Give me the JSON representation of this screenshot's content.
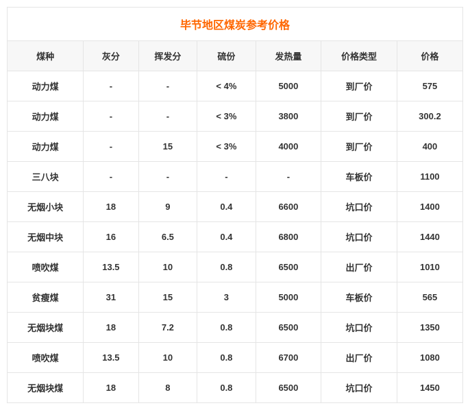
{
  "title": "毕节地区煤炭参考价格",
  "title_color": "#ff6600",
  "columns": [
    "煤种",
    "灰分",
    "挥发分",
    "硫份",
    "发热量",
    "价格类型",
    "价格"
  ],
  "rows": [
    [
      "动力煤",
      "-",
      "-",
      "< 4%",
      "5000",
      "到厂价",
      "575"
    ],
    [
      "动力煤",
      "-",
      "-",
      "< 3%",
      "3800",
      "到厂价",
      "300.2"
    ],
    [
      "动力煤",
      "-",
      "15",
      "< 3%",
      "4000",
      "到厂价",
      "400"
    ],
    [
      "三八块",
      "-",
      "-",
      "-",
      "-",
      "车板价",
      "1100"
    ],
    [
      "无烟小块",
      "18",
      "9",
      "0.4",
      "6600",
      "坑口价",
      "1400"
    ],
    [
      "无烟中块",
      "16",
      "6.5",
      "0.4",
      "6800",
      "坑口价",
      "1440"
    ],
    [
      "喷吹煤",
      "13.5",
      "10",
      "0.8",
      "6500",
      "出厂价",
      "1010"
    ],
    [
      "贫瘦煤",
      "31",
      "15",
      "3",
      "5000",
      "车板价",
      "565"
    ],
    [
      "无烟块煤",
      "18",
      "7.2",
      "0.8",
      "6500",
      "坑口价",
      "1350"
    ],
    [
      "喷吹煤",
      "13.5",
      "10",
      "0.8",
      "6700",
      "出厂价",
      "1080"
    ],
    [
      "无烟块煤",
      "18",
      "8",
      "0.8",
      "6500",
      "坑口价",
      "1450"
    ]
  ]
}
